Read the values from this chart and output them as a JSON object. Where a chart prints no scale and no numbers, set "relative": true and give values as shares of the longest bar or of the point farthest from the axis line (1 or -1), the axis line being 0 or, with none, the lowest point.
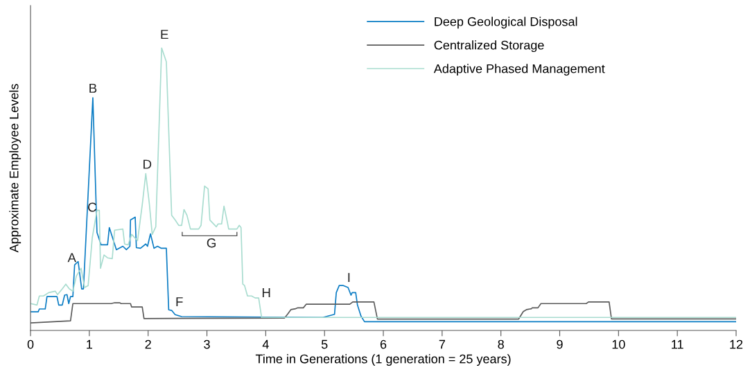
{
  "chart_data": {
    "type": "line",
    "relative": true,
    "xlabel": "Time in Generations (1 generation = 25 years)",
    "ylabel": "Approximate Employee Levels",
    "xlim": [
      0,
      12
    ],
    "xticks": [
      0,
      1,
      2,
      3,
      4,
      5,
      6,
      7,
      8,
      9,
      10,
      11,
      12
    ],
    "grid": false,
    "legend": "top right",
    "marker": "none",
    "line_style": "solid",
    "series": [
      {
        "name": "Deep Geological Disposal",
        "color": "#0a7cc4",
        "x": [
          0.01,
          0.13,
          0.15,
          0.25,
          0.28,
          0.45,
          0.48,
          0.54,
          0.58,
          0.62,
          0.65,
          0.68,
          0.72,
          0.75,
          0.81,
          0.87,
          0.9,
          1.06,
          1.13,
          1.2,
          1.31,
          1.34,
          1.46,
          1.57,
          1.63,
          1.69,
          1.7,
          1.78,
          1.8,
          1.87,
          1.96,
          1.99,
          2.04,
          2.1,
          2.16,
          2.22,
          2.31,
          2.35,
          2.4,
          2.46,
          2.57,
          4.97,
          5.17,
          5.2,
          5.25,
          5.32,
          5.4,
          5.45,
          5.47,
          5.53,
          5.56,
          5.62,
          5.68,
          12
        ],
        "values": [
          0.066,
          0.066,
          0.076,
          0.076,
          0.12,
          0.12,
          0.09,
          0.09,
          0.125,
          0.127,
          0.095,
          0.12,
          0.12,
          0.232,
          0.244,
          0.147,
          0.147,
          0.824,
          0.347,
          0.303,
          0.303,
          0.364,
          0.286,
          0.298,
          0.286,
          0.298,
          0.391,
          0.401,
          0.293,
          0.291,
          0.306,
          0.298,
          0.342,
          0.291,
          0.298,
          0.291,
          0.291,
          0.073,
          0.071,
          0.056,
          0.049,
          0.046,
          0.057,
          0.134,
          0.159,
          0.159,
          0.152,
          0.125,
          0.134,
          0.134,
          0.09,
          0.051,
          0.031,
          0.031
        ]
      },
      {
        "name": "Centralized Storage",
        "color": "#5a5a5a",
        "x": [
          0.01,
          0.68,
          0.72,
          1.37,
          1.43,
          1.52,
          1.54,
          1.7,
          1.72,
          1.9,
          1.93,
          4.32,
          4.37,
          4.43,
          4.51,
          4.54,
          4.64,
          4.69,
          5.43,
          5.48,
          5.84,
          5.9,
          8.3,
          8.38,
          8.44,
          8.52,
          8.53,
          8.63,
          8.68,
          9.45,
          9.49,
          9.84,
          9.88,
          12
        ],
        "values": [
          0.027,
          0.034,
          0.095,
          0.095,
          0.098,
          0.098,
          0.095,
          0.095,
          0.083,
          0.083,
          0.042,
          0.044,
          0.057,
          0.074,
          0.077,
          0.08,
          0.08,
          0.093,
          0.093,
          0.101,
          0.101,
          0.04,
          0.04,
          0.067,
          0.074,
          0.077,
          0.08,
          0.08,
          0.095,
          0.095,
          0.101,
          0.101,
          0.041,
          0.041
        ]
      },
      {
        "name": "Adaptive Phased Management",
        "color": "#a8dccf",
        "x": [
          0.01,
          0.11,
          0.15,
          0.22,
          0.31,
          0.42,
          0.46,
          0.54,
          0.6,
          0.66,
          0.72,
          0.78,
          0.86,
          0.92,
          0.98,
          1.05,
          1.13,
          1.17,
          1.19,
          1.25,
          1.31,
          1.39,
          1.43,
          1.57,
          1.6,
          1.66,
          1.72,
          1.82,
          1.9,
          1.96,
          2.02,
          2.07,
          2.13,
          2.23,
          2.31,
          2.4,
          2.46,
          2.52,
          2.57,
          2.61,
          2.66,
          2.72,
          2.86,
          2.9,
          2.96,
          3.02,
          3.05,
          3.16,
          3.19,
          3.25,
          3.29,
          3.34,
          3.37,
          3.51,
          3.55,
          3.58,
          3.61,
          3.64,
          3.69,
          3.76,
          3.82,
          3.88,
          3.93,
          12
        ],
        "values": [
          0.095,
          0.09,
          0.122,
          0.122,
          0.134,
          0.139,
          0.127,
          0.147,
          0.164,
          0.147,
          0.139,
          0.193,
          0.22,
          0.152,
          0.159,
          0.328,
          0.425,
          0.425,
          0.22,
          0.267,
          0.257,
          0.254,
          0.355,
          0.359,
          0.306,
          0.303,
          0.34,
          0.318,
          0.445,
          0.555,
          0.45,
          0.34,
          0.367,
          1.0,
          0.951,
          0.408,
          0.391,
          0.372,
          0.372,
          0.428,
          0.408,
          0.359,
          0.359,
          0.372,
          0.511,
          0.501,
          0.391,
          0.367,
          0.377,
          0.377,
          0.44,
          0.391,
          0.359,
          0.359,
          0.372,
          0.364,
          0.164,
          0.159,
          0.122,
          0.122,
          0.115,
          0.115,
          0.046,
          0.046
        ]
      }
    ],
    "annotations": [
      {
        "text": "A",
        "x": 0.81,
        "y": 0.244
      },
      {
        "text": "B",
        "x": 1.06,
        "y": 0.824
      },
      {
        "text": "C",
        "x": 1.13,
        "y": 0.425
      },
      {
        "text": "D",
        "x": 1.96,
        "y": 0.555
      },
      {
        "text": "E",
        "x": 2.23,
        "y": 1.0
      },
      {
        "text": "F",
        "x": 2.46,
        "y": 0.056
      },
      {
        "text": "G",
        "x": 3.16,
        "y": 0.367
      },
      {
        "text": "H",
        "x": 3.88,
        "y": 0.115
      },
      {
        "text": "I",
        "x": 5.32,
        "y": 0.159
      }
    ]
  }
}
